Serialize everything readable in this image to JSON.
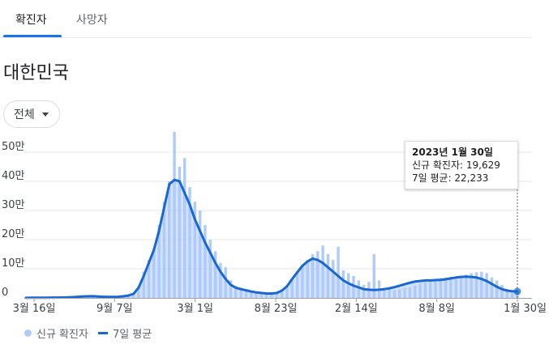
{
  "tabs": [
    {
      "label": "확진자",
      "active": true
    },
    {
      "label": "사망자",
      "active": false
    }
  ],
  "region": "대한민국",
  "filter": {
    "selected": "전체"
  },
  "tooltip": {
    "date": "2023년 1월 30일",
    "new_cases_line": "신규 확진자: 19,629",
    "avg_line": "7일 평균: 22,233"
  },
  "legend": {
    "bars": "신규 확진자",
    "line": "7일 평균"
  },
  "colors": {
    "bars": "#aecbfa",
    "line": "#1967d2",
    "accent": "#1a73e8",
    "grid": "#e8eaed"
  },
  "chart_data": {
    "type": "bar",
    "y_ticks": [
      "0",
      "10만",
      "20만",
      "30만",
      "40만",
      "50만"
    ],
    "x_ticks": [
      "3월 16일",
      "9월 7일",
      "3월 1일",
      "8월 23일",
      "2월 14일",
      "8월 8일",
      "1월 30일"
    ],
    "ylim": [
      0,
      550000
    ],
    "series": [
      {
        "kind": "bars",
        "values": [
          400,
          600,
          500,
          700,
          900,
          1000,
          1200,
          1500,
          1800,
          2500,
          3500,
          5000,
          6000,
          6500,
          5000,
          3500,
          3000,
          3500,
          4000,
          5500,
          8000,
          15000,
          40000,
          90000,
          130000,
          170000,
          250000,
          330000,
          400000,
          570000,
          450000,
          480000,
          380000,
          330000,
          300000,
          250000,
          200000,
          160000,
          120000,
          105000,
          60000,
          40000,
          35000,
          30000,
          25000,
          20000,
          18000,
          16000,
          15000,
          17000,
          25000,
          40000,
          65000,
          90000,
          115000,
          130000,
          150000,
          160000,
          180000,
          150000,
          130000,
          175000,
          95000,
          85000,
          75000,
          60000,
          45000,
          55000,
          150000,
          60000,
          35000,
          30000,
          28000,
          30000,
          33000,
          36000,
          42000,
          48000,
          55000,
          62000,
          65000,
          68000,
          70000,
          72000,
          74000,
          76000,
          80000,
          85000,
          88000,
          90000,
          85000,
          70000,
          60000,
          45000,
          30000,
          25000,
          19629
        ]
      },
      {
        "kind": "line",
        "values": [
          400,
          600,
          500,
          700,
          900,
          1000,
          1200,
          1500,
          1800,
          2500,
          3500,
          5000,
          5500,
          5800,
          4800,
          3800,
          3200,
          3400,
          4000,
          5500,
          8000,
          14000,
          35000,
          75000,
          120000,
          165000,
          230000,
          310000,
          390000,
          405000,
          400000,
          360000,
          320000,
          270000,
          230000,
          190000,
          155000,
          120000,
          90000,
          65000,
          45000,
          35000,
          30000,
          26000,
          22000,
          19000,
          17000,
          15000,
          15000,
          17000,
          25000,
          40000,
          65000,
          88000,
          110000,
          125000,
          135000,
          130000,
          120000,
          105000,
          90000,
          75000,
          60000,
          50000,
          42000,
          36000,
          30000,
          28000,
          27000,
          28000,
          30000,
          33000,
          37000,
          42000,
          47000,
          52000,
          56000,
          58000,
          60000,
          60000,
          61000,
          62000,
          64000,
          67000,
          70000,
          72000,
          73000,
          72000,
          70000,
          65000,
          58000,
          48000,
          38000,
          30000,
          25000,
          23000,
          22233
        ]
      }
    ]
  }
}
